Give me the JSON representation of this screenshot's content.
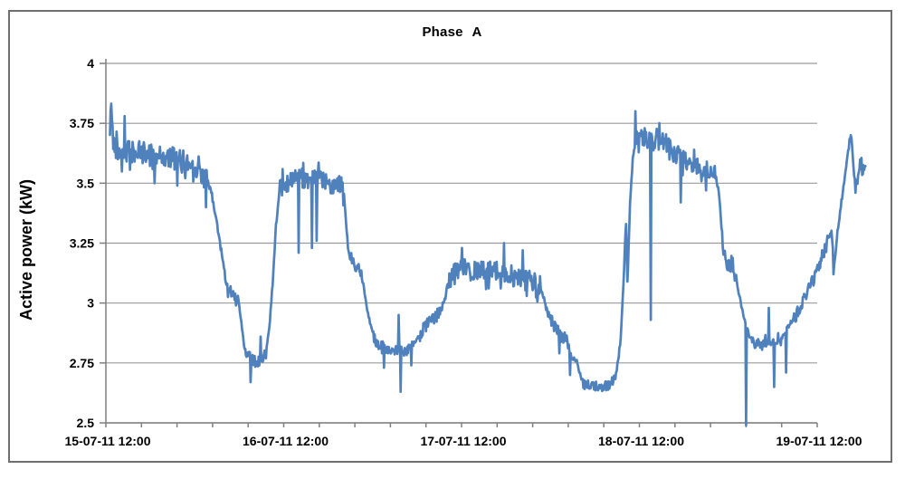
{
  "chart": {
    "title": "Phase A",
    "ylabel": "Active power (kW)"
  },
  "chart_data": {
    "type": "line",
    "title": "Phase A",
    "xlabel": "",
    "ylabel": "Active power (kW)",
    "ylim": [
      2.5,
      4.0
    ],
    "y_ticks": [
      4,
      3.75,
      3.5,
      3.25,
      3,
      2.75,
      2.5
    ],
    "y_tick_labels": [
      "4",
      "3.75",
      "3.5",
      "3.25",
      "3",
      "2.75",
      "2.5"
    ],
    "x_tick_labels": [
      "15-07-11 12:00",
      "16-07-11 12:00",
      "17-07-11 12:00",
      "18-07-11 12:00",
      "19-07-11 12:00"
    ],
    "x_minor_ticks_between_labels": 5,
    "grid": "horizontal",
    "legend": "none",
    "colors": {
      "line": "#4F81BD",
      "gridline": "#9a9a9a",
      "axis": "#7f7f7f",
      "text": "#000000"
    },
    "series": {
      "name": "Phase A",
      "unit": "kW",
      "x_unit": "hours since 15-07-11 12:00",
      "baseline": [
        [
          0.3,
          3.7
        ],
        [
          0.45,
          3.86
        ],
        [
          0.7,
          3.67
        ],
        [
          1.5,
          3.64
        ],
        [
          3.0,
          3.63
        ],
        [
          6.0,
          3.62
        ],
        [
          9.0,
          3.6
        ],
        [
          11.0,
          3.585
        ],
        [
          12.3,
          3.565
        ],
        [
          13.2,
          3.52
        ],
        [
          13.9,
          3.47
        ],
        [
          14.6,
          3.36
        ],
        [
          15.3,
          3.22
        ],
        [
          16.1,
          3.07
        ],
        [
          16.6,
          3.05
        ],
        [
          17.5,
          3.02
        ],
        [
          18.0,
          2.93
        ],
        [
          18.4,
          2.82
        ],
        [
          19.0,
          2.77
        ],
        [
          20.0,
          2.755
        ],
        [
          21.0,
          2.76
        ],
        [
          21.4,
          2.8
        ],
        [
          21.9,
          2.93
        ],
        [
          22.3,
          3.1
        ],
        [
          22.7,
          3.32
        ],
        [
          23.2,
          3.47
        ],
        [
          24.0,
          3.49
        ],
        [
          25.0,
          3.51
        ],
        [
          26.5,
          3.52
        ],
        [
          28.5,
          3.51
        ],
        [
          30.0,
          3.5
        ],
        [
          31.5,
          3.49
        ],
        [
          31.9,
          3.45
        ],
        [
          32.3,
          3.28
        ],
        [
          32.6,
          3.2
        ],
        [
          33.2,
          3.17
        ],
        [
          34.0,
          3.145
        ],
        [
          34.5,
          3.08
        ],
        [
          35.0,
          2.98
        ],
        [
          35.6,
          2.89
        ],
        [
          36.1,
          2.845
        ],
        [
          37.0,
          2.815
        ],
        [
          38.5,
          2.805
        ],
        [
          40.0,
          2.8
        ],
        [
          41.2,
          2.825
        ],
        [
          42.2,
          2.87
        ],
        [
          43.0,
          2.91
        ],
        [
          44.0,
          2.935
        ],
        [
          44.8,
          2.96
        ],
        [
          45.4,
          3.01
        ],
        [
          46.2,
          3.1
        ],
        [
          46.8,
          3.135
        ],
        [
          48.0,
          3.14
        ],
        [
          50.0,
          3.13
        ],
        [
          52.0,
          3.135
        ],
        [
          53.8,
          3.115
        ],
        [
          55.5,
          3.1
        ],
        [
          57.0,
          3.095
        ],
        [
          58.3,
          3.075
        ],
        [
          59.0,
          3.01
        ],
        [
          59.8,
          2.93
        ],
        [
          60.5,
          2.885
        ],
        [
          61.3,
          2.86
        ],
        [
          62.0,
          2.84
        ],
        [
          62.6,
          2.77
        ],
        [
          63.3,
          2.76
        ],
        [
          63.7,
          2.71
        ],
        [
          64.1,
          2.665
        ],
        [
          65.0,
          2.655
        ],
        [
          66.5,
          2.65
        ],
        [
          67.8,
          2.66
        ],
        [
          68.6,
          2.7
        ],
        [
          69.2,
          2.83
        ],
        [
          69.7,
          3.15
        ],
        [
          69.95,
          3.35
        ],
        [
          70.15,
          3.08
        ],
        [
          70.5,
          3.42
        ],
        [
          70.9,
          3.62
        ],
        [
          71.3,
          3.67
        ],
        [
          72.5,
          3.69
        ],
        [
          74.0,
          3.68
        ],
        [
          75.5,
          3.66
        ],
        [
          76.3,
          3.62
        ],
        [
          77.5,
          3.6
        ],
        [
          78.5,
          3.585
        ],
        [
          79.5,
          3.57
        ],
        [
          80.5,
          3.555
        ],
        [
          81.8,
          3.55
        ],
        [
          82.4,
          3.48
        ],
        [
          82.75,
          3.36
        ],
        [
          83.05,
          3.21
        ],
        [
          83.6,
          3.17
        ],
        [
          84.5,
          3.15
        ],
        [
          84.9,
          3.09
        ],
        [
          85.5,
          2.99
        ],
        [
          86.0,
          2.92
        ],
        [
          86.6,
          2.865
        ],
        [
          87.2,
          2.835
        ],
        [
          88.5,
          2.825
        ],
        [
          89.8,
          2.83
        ],
        [
          90.6,
          2.835
        ],
        [
          91.3,
          2.875
        ],
        [
          92.2,
          2.92
        ],
        [
          93.2,
          2.965
        ],
        [
          94.2,
          3.03
        ],
        [
          95.3,
          3.1
        ],
        [
          96.3,
          3.18
        ],
        [
          97.2,
          3.26
        ],
        [
          97.7,
          3.3
        ],
        [
          98.05,
          3.15
        ],
        [
          98.5,
          3.3
        ],
        [
          99.0,
          3.42
        ],
        [
          99.6,
          3.55
        ],
        [
          100.1,
          3.67
        ],
        [
          100.35,
          3.7
        ],
        [
          100.75,
          3.53
        ],
        [
          101.05,
          3.49
        ],
        [
          101.5,
          3.6
        ],
        [
          101.85,
          3.57
        ],
        [
          102.1,
          3.56
        ],
        [
          102.3,
          3.6
        ]
      ],
      "noise_bands": [
        [
          0.6,
          13.5,
          0.05
        ],
        [
          13.5,
          16.2,
          0.018
        ],
        [
          16.2,
          17.8,
          0.025
        ],
        [
          18.5,
          21.5,
          0.03
        ],
        [
          23.2,
          31.8,
          0.042
        ],
        [
          32.4,
          34.3,
          0.03
        ],
        [
          35.8,
          41.3,
          0.022
        ],
        [
          42.0,
          45.2,
          0.028
        ],
        [
          45.5,
          58.4,
          0.045
        ],
        [
          58.9,
          62.3,
          0.03
        ],
        [
          64.0,
          68.6,
          0.02
        ],
        [
          71.2,
          76.0,
          0.05
        ],
        [
          76.0,
          82.2,
          0.038
        ],
        [
          83.2,
          84.8,
          0.038
        ],
        [
          86.8,
          91.0,
          0.022
        ],
        [
          92.5,
          97.4,
          0.028
        ],
        [
          100.9,
          102.3,
          0.035
        ]
      ],
      "spikes": [
        [
          2.3,
          3.78
        ],
        [
          6.3,
          3.5
        ],
        [
          9.4,
          3.49
        ],
        [
          13.3,
          3.4
        ],
        [
          19.3,
          2.67
        ],
        [
          20.6,
          2.86
        ],
        [
          25.8,
          3.21
        ],
        [
          27.6,
          3.23
        ],
        [
          28.2,
          3.26
        ],
        [
          37.3,
          2.73
        ],
        [
          39.3,
          2.95
        ],
        [
          39.5,
          2.63
        ],
        [
          41.0,
          2.74
        ],
        [
          47.8,
          3.23
        ],
        [
          53.5,
          3.25
        ],
        [
          56.0,
          3.22
        ],
        [
          61.0,
          2.79
        ],
        [
          62.4,
          2.7
        ],
        [
          71.2,
          3.8
        ],
        [
          73.3,
          2.93
        ],
        [
          77.3,
          3.42
        ],
        [
          79.1,
          3.64
        ],
        [
          80.8,
          3.47
        ],
        [
          82.9,
          3.3
        ],
        [
          86.2,
          2.49
        ],
        [
          89.2,
          2.98
        ],
        [
          89.9,
          2.65
        ],
        [
          91.6,
          2.71
        ],
        [
          97.95,
          3.12
        ],
        [
          100.9,
          3.46
        ]
      ]
    }
  }
}
